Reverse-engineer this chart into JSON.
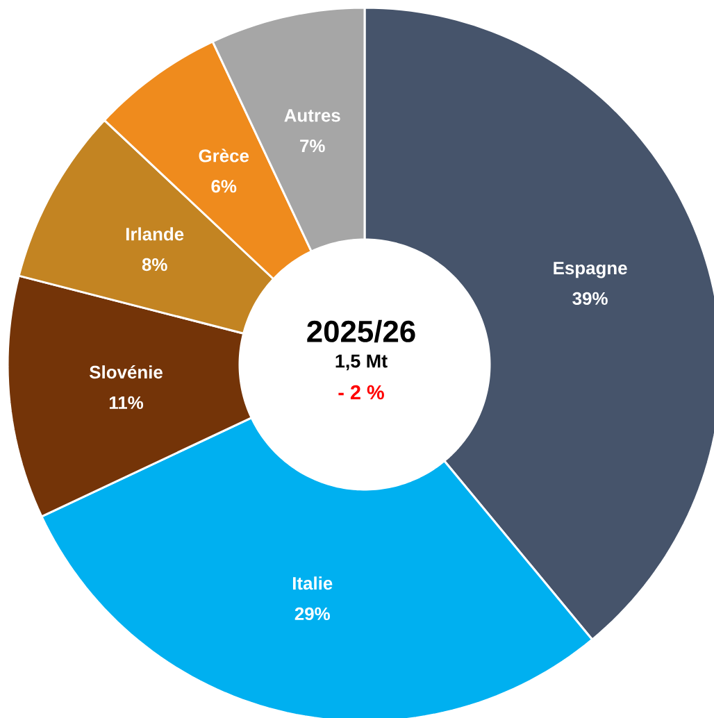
{
  "chart_data": {
    "type": "donut",
    "title": "2025/26",
    "subtitle": "1,5 Mt",
    "annotations": [
      "- 2 %"
    ],
    "categories": [
      "Espagne",
      "Italie",
      "Slovénie",
      "Irlande",
      "Grèce",
      "Autres"
    ],
    "values": [
      39,
      29,
      11,
      8,
      6,
      7
    ],
    "value_labels": [
      "39%",
      "29%",
      "11%",
      "8%",
      "6%",
      "7%"
    ],
    "colors": [
      "#46546b",
      "#00b0f0",
      "#743408",
      "#c38422",
      "#ef8b1d",
      "#a6a6a6"
    ]
  }
}
